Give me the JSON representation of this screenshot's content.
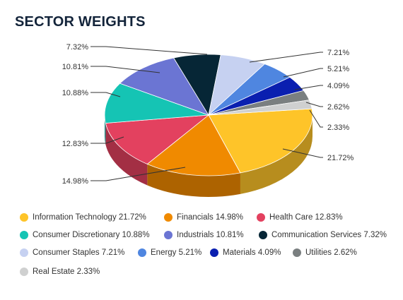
{
  "title": "SECTOR WEIGHTS",
  "chart_data": {
    "type": "pie",
    "title": "SECTOR WEIGHTS",
    "three_d": true,
    "slices": [
      {
        "name": "Information Technology",
        "value": 21.72,
        "label": "21.72%",
        "legend": "Information Technology 21.72%",
        "color": "#fec429"
      },
      {
        "name": "Financials",
        "value": 14.98,
        "label": "14.98%",
        "legend": "Financials 14.98%",
        "color": "#f08a00"
      },
      {
        "name": "Health Care",
        "value": 12.83,
        "label": "12.83%",
        "legend": "Health Care 12.83%",
        "color": "#e3415f"
      },
      {
        "name": "Consumer Discretionary",
        "value": 10.88,
        "label": "10.88%",
        "legend": "Consumer Discretionary 10.88%",
        "color": "#15c4b4"
      },
      {
        "name": "Industrials",
        "value": 10.81,
        "label": "10.81%",
        "legend": "Industrials 10.81%",
        "color": "#6b75d3"
      },
      {
        "name": "Communication Services",
        "value": 7.32,
        "label": "7.32%",
        "legend": "Communication Services 7.32%",
        "color": "#062636"
      },
      {
        "name": "Consumer Staples",
        "value": 7.21,
        "label": "7.21%",
        "legend": "Consumer Staples 7.21%",
        "color": "#c6d1f1"
      },
      {
        "name": "Energy",
        "value": 5.21,
        "label": "5.21%",
        "legend": "Energy 5.21%",
        "color": "#4f86e0"
      },
      {
        "name": "Materials",
        "value": 4.09,
        "label": "4.09%",
        "legend": "Materials 4.09%",
        "color": "#0a1fb0"
      },
      {
        "name": "Utilities",
        "value": 2.62,
        "label": "2.62%",
        "legend": "Utilities 2.62%",
        "color": "#7a7f80"
      },
      {
        "name": "Real Estate",
        "value": 2.33,
        "label": "2.33%",
        "legend": "Real Estate 2.33%",
        "color": "#cfd0d0"
      }
    ],
    "legend_position": "bottom"
  }
}
